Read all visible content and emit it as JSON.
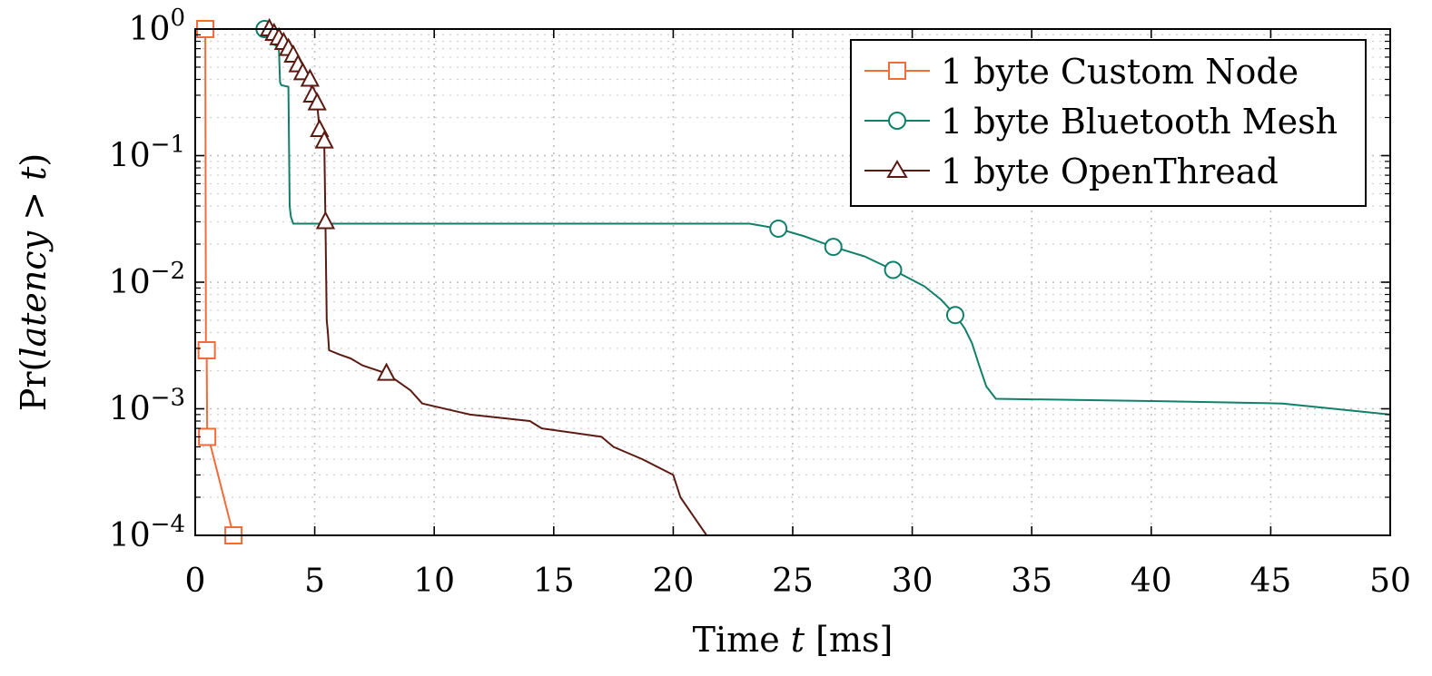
{
  "chart_data": {
    "type": "line",
    "title": "",
    "xlabel": "Time t [ms]",
    "xlabel_parts": {
      "prefix": "Time ",
      "var": "t",
      "suffix": " [ms]"
    },
    "ylabel": "Pr(latency > t)",
    "ylabel_parts": {
      "prefix": "Pr(",
      "var": "latency",
      "op": " > ",
      "var2": "t",
      "suffix": ")"
    },
    "xlim": [
      0,
      50
    ],
    "ylim": [
      0.0001,
      1
    ],
    "yscale": "log",
    "grid": true,
    "legend_position": "top-right",
    "x_ticks": [
      0,
      5,
      10,
      15,
      20,
      25,
      30,
      35,
      40,
      45,
      50
    ],
    "x_tick_labels": [
      "0",
      "5",
      "10",
      "15",
      "20",
      "25",
      "30",
      "35",
      "40",
      "45",
      "50"
    ],
    "y_ticks": [
      {
        "value": 1,
        "base": "10",
        "exp": "0"
      },
      {
        "value": 0.1,
        "base": "10",
        "exp": "−1"
      },
      {
        "value": 0.01,
        "base": "10",
        "exp": "−2"
      },
      {
        "value": 0.001,
        "base": "10",
        "exp": "−3"
      },
      {
        "value": 0.0001,
        "base": "10",
        "exp": "−4"
      }
    ],
    "series": [
      {
        "name": "1 byte Custom Node",
        "color": "#F26B38",
        "marker": "square",
        "x": [
          0.42,
          0.45,
          0.48,
          0.5,
          0.55,
          1.6
        ],
        "y": [
          1.0,
          0.003,
          0.0029,
          0.0006,
          0.0006,
          0.0001
        ],
        "markers": [
          [
            0.42,
            1.0
          ],
          [
            0.48,
            0.0029
          ],
          [
            0.5,
            0.0006
          ],
          [
            1.6,
            0.0001
          ]
        ]
      },
      {
        "name": "1 byte Bluetooth Mesh",
        "color": "#11806A",
        "marker": "circle",
        "x": [
          2.9,
          3.2,
          3.3,
          3.5,
          3.55,
          3.6,
          3.9,
          3.95,
          4.0,
          4.1,
          10,
          20,
          23.2,
          24.4,
          25.5,
          26.7,
          28.0,
          29.2,
          30.5,
          31.2,
          31.8,
          32.2,
          32.5,
          32.8,
          33.1,
          33.5,
          40,
          45.5,
          50
        ],
        "y": [
          1.0,
          0.85,
          0.75,
          0.72,
          0.38,
          0.36,
          0.35,
          0.04,
          0.033,
          0.029,
          0.029,
          0.029,
          0.029,
          0.0265,
          0.023,
          0.019,
          0.016,
          0.0125,
          0.0093,
          0.0073,
          0.0055,
          0.0043,
          0.0033,
          0.0022,
          0.0015,
          0.0012,
          0.00115,
          0.0011,
          0.0009
        ],
        "markers": [
          [
            2.9,
            1.0
          ],
          [
            24.4,
            0.0265
          ],
          [
            26.7,
            0.019
          ],
          [
            29.2,
            0.0125
          ],
          [
            31.8,
            0.0055
          ]
        ]
      },
      {
        "name": "1 byte OpenThread",
        "color": "#5B1A12",
        "marker": "triangle",
        "x": [
          3.1,
          3.3,
          3.5,
          3.7,
          3.9,
          4.1,
          4.3,
          4.5,
          4.8,
          4.9,
          5.1,
          5.2,
          5.4,
          5.45,
          5.5,
          5.55,
          5.6,
          6.0,
          6.5,
          7.0,
          8.0,
          9.0,
          9.5,
          11.5,
          14.0,
          14.5,
          17.0,
          17.5,
          18.7,
          20.0,
          20.3,
          21.4
        ],
        "y": [
          1.0,
          0.92,
          0.85,
          0.78,
          0.7,
          0.62,
          0.52,
          0.45,
          0.4,
          0.3,
          0.26,
          0.16,
          0.13,
          0.03,
          0.005,
          0.004,
          0.0029,
          0.0027,
          0.0025,
          0.0022,
          0.0019,
          0.0014,
          0.0011,
          0.0009,
          0.0008,
          0.0007,
          0.0006,
          0.0005,
          0.0004,
          0.0003,
          0.0002,
          0.0001
        ],
        "markers": [
          [
            3.1,
            1.0
          ],
          [
            3.3,
            0.92
          ],
          [
            3.5,
            0.85
          ],
          [
            3.7,
            0.78
          ],
          [
            3.9,
            0.7
          ],
          [
            4.1,
            0.62
          ],
          [
            4.3,
            0.52
          ],
          [
            4.5,
            0.45
          ],
          [
            4.8,
            0.4
          ],
          [
            4.9,
            0.3
          ],
          [
            5.1,
            0.26
          ],
          [
            5.2,
            0.16
          ],
          [
            5.4,
            0.13
          ],
          [
            5.45,
            0.03
          ],
          [
            8.0,
            0.0019
          ]
        ]
      }
    ]
  }
}
